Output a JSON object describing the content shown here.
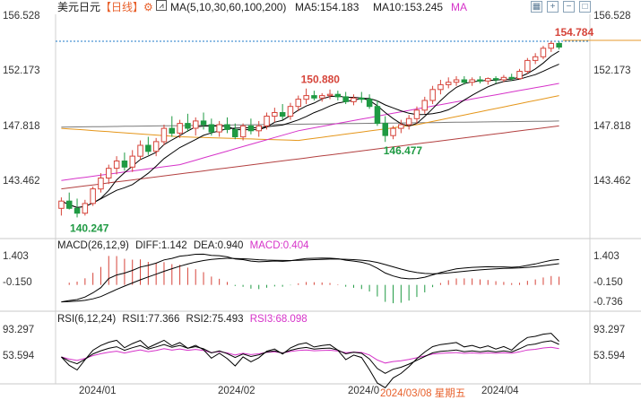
{
  "header": {
    "symbol": "美元日元",
    "period": "【日线】",
    "gear_icon": "gear-icon",
    "ma_icon": "line-chart-icon",
    "ma_label": "MA(5,10,30,60,100,200)",
    "ma5_label": "MA5:154.183",
    "ma10_label": "MA10:153.245",
    "ma_tail": "MA",
    "tools": [
      "grid-icon",
      "zoom-in-icon",
      "zoom-out-icon",
      "square-icon"
    ]
  },
  "colors": {
    "up_candle": "#d6443a",
    "down_candle": "#1f9a43",
    "ma5": "#000000",
    "ma10": "#000000",
    "ma30": "#d633c9",
    "ma60": "#e5961a",
    "ma100": "#7a7a7a",
    "ma200": "#b34040",
    "macd_pos": "#d6443a",
    "macd_neg": "#1f9a43",
    "rsi1": "#000000",
    "rsi2": "#000000",
    "rsi3": "#d633c9",
    "current_line": "#1e7ac8"
  },
  "price_axis": {
    "left": [
      "156.528",
      "152.173",
      "147.818",
      "143.462"
    ],
    "right": [
      "156.528",
      "152.173",
      "147.818",
      "143.462"
    ],
    "current_price": 154.784
  },
  "annotations": {
    "high_label": "154.784",
    "mid_high_label": "150.880",
    "low_label": "140.247",
    "mid_low_label": "146.477"
  },
  "macd": {
    "title": "MACD(26,12,9)",
    "diff_label": "DIFF:1.142",
    "dea_label": "DEA:0.940",
    "macd_label": "MACD:0.404",
    "axis_left": [
      "1.403",
      "-0.150"
    ],
    "axis_right": [
      "1.403",
      "-0.150",
      "-0.736"
    ]
  },
  "rsi": {
    "title": "RSI(6,12,24)",
    "rsi1_label": "RSI1:77.366",
    "rsi2_label": "RSI2:75.493",
    "rsi3_label": "RSI3:68.098",
    "axis_left": [
      "93.297",
      "53.594"
    ],
    "axis_right": [
      "93.297",
      "53.594"
    ]
  },
  "x_axis": {
    "labels": [
      "2024/01",
      "2024/02",
      "2024/0",
      "2024/04"
    ],
    "highlight": "2024/03/08 星期五"
  },
  "chart_data": {
    "type": "candlestick",
    "title": "美元日元【日线】",
    "series_names": [
      "MA5",
      "MA10",
      "MA30",
      "MA60",
      "MA100",
      "MA200"
    ],
    "ylim": [
      138.8,
      157.0
    ],
    "candles": [
      [
        141.0,
        141.9,
        140.4,
        141.6
      ],
      [
        141.6,
        142.3,
        140.9,
        141.0
      ],
      [
        141.0,
        141.8,
        140.25,
        140.6
      ],
      [
        140.6,
        141.7,
        140.4,
        141.4
      ],
      [
        141.4,
        142.8,
        141.2,
        142.6
      ],
      [
        142.6,
        143.9,
        142.3,
        143.5
      ],
      [
        143.5,
        144.6,
        143.0,
        144.3
      ],
      [
        144.3,
        145.3,
        143.8,
        144.9
      ],
      [
        144.9,
        145.6,
        144.1,
        144.4
      ],
      [
        144.4,
        145.8,
        144.0,
        145.3
      ],
      [
        145.3,
        146.6,
        145.0,
        146.2
      ],
      [
        146.2,
        146.9,
        145.4,
        145.7
      ],
      [
        145.7,
        146.8,
        145.3,
        146.5
      ],
      [
        146.5,
        147.9,
        146.2,
        147.6
      ],
      [
        147.6,
        148.6,
        146.9,
        147.2
      ],
      [
        147.2,
        148.3,
        146.8,
        148.0
      ],
      [
        148.0,
        148.8,
        147.3,
        147.6
      ],
      [
        147.6,
        148.5,
        147.0,
        148.2
      ],
      [
        148.2,
        148.9,
        147.5,
        147.9
      ],
      [
        147.9,
        148.4,
        147.0,
        147.3
      ],
      [
        147.3,
        148.2,
        146.9,
        147.9
      ],
      [
        147.9,
        148.5,
        147.2,
        147.5
      ],
      [
        147.5,
        148.0,
        146.7,
        146.9
      ],
      [
        146.9,
        148.0,
        146.6,
        147.8
      ],
      [
        147.8,
        148.4,
        147.1,
        147.4
      ],
      [
        147.4,
        148.2,
        146.9,
        147.8
      ],
      [
        147.8,
        148.9,
        147.5,
        148.6
      ],
      [
        148.6,
        149.3,
        148.1,
        148.9
      ],
      [
        148.9,
        149.6,
        148.3,
        148.6
      ],
      [
        148.6,
        149.7,
        148.3,
        149.4
      ],
      [
        149.4,
        150.3,
        149.0,
        150.0
      ],
      [
        150.0,
        150.88,
        149.6,
        150.3
      ],
      [
        150.3,
        150.7,
        149.9,
        150.1
      ],
      [
        150.1,
        150.5,
        149.8,
        150.3
      ],
      [
        150.3,
        150.8,
        150.0,
        150.4
      ],
      [
        150.4,
        150.7,
        149.9,
        150.2
      ],
      [
        150.2,
        150.6,
        149.6,
        149.8
      ],
      [
        149.8,
        150.4,
        149.5,
        150.1
      ],
      [
        150.1,
        150.6,
        149.7,
        150.0
      ],
      [
        150.0,
        150.4,
        149.2,
        149.4
      ],
      [
        149.4,
        149.9,
        147.8,
        148.0
      ],
      [
        148.0,
        148.6,
        146.477,
        147.0
      ],
      [
        147.0,
        147.8,
        146.7,
        147.6
      ],
      [
        147.6,
        148.3,
        147.2,
        147.9
      ],
      [
        147.9,
        148.7,
        147.5,
        148.4
      ],
      [
        148.4,
        149.4,
        148.0,
        149.1
      ],
      [
        149.1,
        150.2,
        148.8,
        149.9
      ],
      [
        149.9,
        151.1,
        149.6,
        150.8
      ],
      [
        150.8,
        151.6,
        150.4,
        151.2
      ],
      [
        151.2,
        151.8,
        150.9,
        151.4
      ],
      [
        151.4,
        151.9,
        151.1,
        151.6
      ],
      [
        151.6,
        151.9,
        151.2,
        151.4
      ],
      [
        151.4,
        151.8,
        151.1,
        151.6
      ],
      [
        151.6,
        151.9,
        151.3,
        151.5
      ],
      [
        151.5,
        151.8,
        151.2,
        151.7
      ],
      [
        151.7,
        151.9,
        151.3,
        151.6
      ],
      [
        151.6,
        152.0,
        151.4,
        151.8
      ],
      [
        151.8,
        152.1,
        151.5,
        151.7
      ],
      [
        151.7,
        152.5,
        151.6,
        152.3
      ],
      [
        152.3,
        153.4,
        152.1,
        153.2
      ],
      [
        153.2,
        153.8,
        152.9,
        153.5
      ],
      [
        153.5,
        154.4,
        153.3,
        154.2
      ],
      [
        154.2,
        154.784,
        153.9,
        154.6
      ],
      [
        154.6,
        154.75,
        154.1,
        154.3
      ]
    ],
    "ma100_anchors": [
      [
        0,
        147.7
      ],
      [
        63,
        148.2
      ]
    ],
    "ma200_anchors": [
      [
        0,
        142.6
      ],
      [
        63,
        147.8
      ]
    ],
    "ma60_anchors": [
      [
        0,
        147.6
      ],
      [
        15,
        146.9
      ],
      [
        30,
        146.6
      ],
      [
        45,
        147.9
      ],
      [
        63,
        150.3
      ]
    ],
    "ma30_anchors": [
      [
        0,
        143.3
      ],
      [
        15,
        144.6
      ],
      [
        30,
        147.4
      ],
      [
        45,
        149.2
      ],
      [
        63,
        151.3
      ]
    ],
    "macd_ylim": [
      -1.3,
      1.6
    ],
    "rsi_ylim": [
      25,
      100
    ]
  }
}
